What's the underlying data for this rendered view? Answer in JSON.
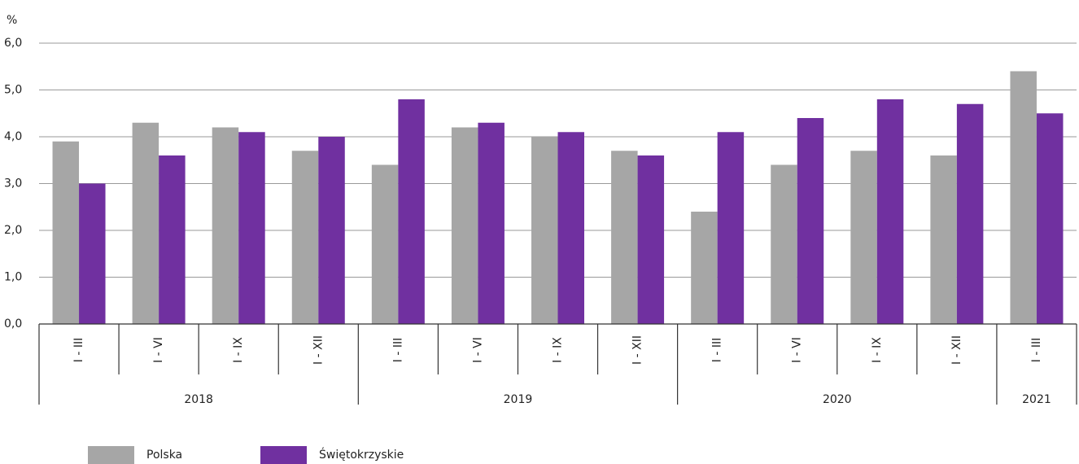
{
  "chart_data": {
    "type": "bar",
    "y_label": "%",
    "categories": [
      "I - III",
      "I - VI",
      "I - IX",
      "I - XII",
      "I - III",
      "I - VI",
      "I - IX",
      "I - XII",
      "I - III",
      "I - VI",
      "I - IX",
      "I - XII",
      "I - III"
    ],
    "groups": [
      {
        "name": "2018",
        "count": 4
      },
      {
        "name": "2019",
        "count": 4
      },
      {
        "name": "2020",
        "count": 4
      },
      {
        "name": "2021",
        "count": 1
      }
    ],
    "series": [
      {
        "name": "Polska",
        "color": "#a6a6a6",
        "values": [
          3.9,
          4.3,
          4.2,
          3.7,
          3.4,
          4.2,
          4.0,
          3.7,
          2.4,
          3.4,
          3.7,
          3.6,
          5.4
        ]
      },
      {
        "name": "Świętokrzyskie",
        "color": "#7030a0",
        "values": [
          3.0,
          3.6,
          4.1,
          4.0,
          4.8,
          4.3,
          4.1,
          3.6,
          4.1,
          4.4,
          4.8,
          4.7,
          4.5
        ]
      }
    ],
    "ylim": [
      0,
      6
    ],
    "yticks": [
      {
        "value": 0,
        "label": "0,0"
      },
      {
        "value": 1,
        "label": "1,0"
      },
      {
        "value": 2,
        "label": "2,0"
      },
      {
        "value": 3,
        "label": "3,0"
      },
      {
        "value": 4,
        "label": "4,0"
      },
      {
        "value": 5,
        "label": "5,0"
      },
      {
        "value": 6,
        "label": "6,0"
      }
    ],
    "grid": true,
    "legend": "bottom-left"
  }
}
